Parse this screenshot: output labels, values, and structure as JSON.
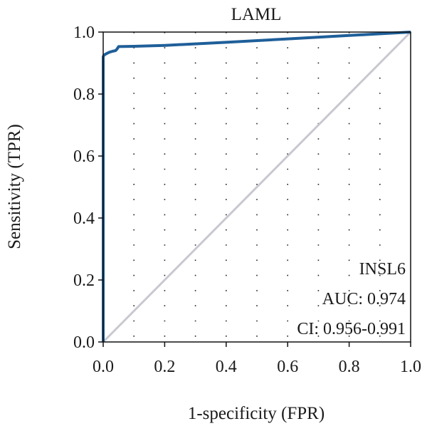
{
  "chart_data": {
    "type": "line",
    "title": "LAML",
    "xlabel": "1-specificity (FPR)",
    "ylabel": "Sensitivity (TPR)",
    "xlim": [
      0,
      1
    ],
    "ylim": [
      0,
      1
    ],
    "xticks": [
      "0.0",
      "0.2",
      "0.4",
      "0.6",
      "0.8",
      "1.0"
    ],
    "yticks": [
      "0.0",
      "0.2",
      "0.4",
      "0.6",
      "0.8",
      "1.0"
    ],
    "grid": true,
    "series": [
      {
        "name": "INSL6",
        "color": "#1f5f99",
        "x": [
          0.0,
          0.0,
          0.002,
          0.01,
          0.02,
          0.03,
          0.04,
          0.045,
          0.05,
          0.1,
          0.2,
          0.4,
          0.6,
          0.8,
          1.0
        ],
        "y": [
          0.0,
          0.92,
          0.925,
          0.93,
          0.935,
          0.938,
          0.94,
          0.945,
          0.953,
          0.954,
          0.957,
          0.967,
          0.978,
          0.989,
          1.0
        ]
      },
      {
        "name": "",
        "color": "#c8c8d0",
        "x": [
          0,
          1
        ],
        "y": [
          0,
          1
        ]
      }
    ],
    "annotations": {
      "gene": "INSL6",
      "auc": "AUC: 0.974",
      "ci": "CI: 0.956-0.991"
    }
  }
}
